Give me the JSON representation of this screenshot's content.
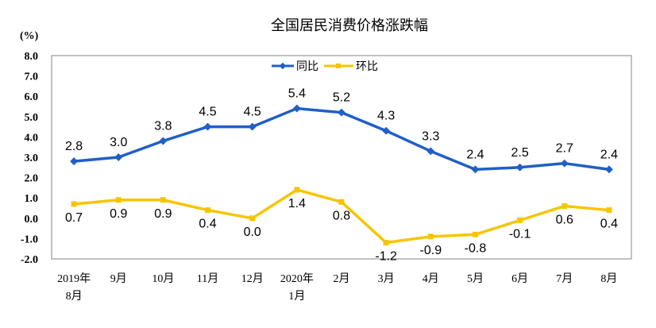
{
  "chart_data": {
    "type": "line",
    "title": "全国居民消费价格涨跌幅",
    "ylabel": "(%)",
    "xlabel": "",
    "ylim": [
      -2.0,
      8.0
    ],
    "yticks": [
      "8.0",
      "7.0",
      "6.0",
      "5.0",
      "4.0",
      "3.0",
      "2.0",
      "1.0",
      "0.0",
      "-1.0",
      "-2.0"
    ],
    "categories": [
      [
        "2019年",
        "8月"
      ],
      [
        "9月"
      ],
      [
        "10月"
      ],
      [
        "11月"
      ],
      [
        "12月"
      ],
      [
        "2020年",
        "1月"
      ],
      [
        "2月"
      ],
      [
        "3月"
      ],
      [
        "4月"
      ],
      [
        "5月"
      ],
      [
        "6月"
      ],
      [
        "7月"
      ],
      [
        "8月"
      ]
    ],
    "grid": false,
    "legend": "top-center",
    "series": [
      {
        "name": "同比",
        "color": "#1f5fc8",
        "marker": "diamond",
        "values": [
          2.8,
          3.0,
          3.8,
          4.5,
          4.5,
          5.4,
          5.2,
          4.3,
          3.3,
          2.4,
          2.5,
          2.7,
          2.4
        ],
        "labels": [
          "2.8",
          "3.0",
          "3.8",
          "4.5",
          "4.5",
          "5.4",
          "5.2",
          "4.3",
          "3.3",
          "2.4",
          "2.5",
          "2.7",
          "2.4"
        ]
      },
      {
        "name": "环比",
        "color": "#f7c500",
        "marker": "square",
        "values": [
          0.7,
          0.9,
          0.9,
          0.4,
          0.0,
          1.4,
          0.8,
          -1.2,
          -0.9,
          -0.8,
          -0.1,
          0.6,
          0.4
        ],
        "labels": [
          "0.7",
          "0.9",
          "0.9",
          "0.4",
          "0.0",
          "1.4",
          "0.8",
          "-1.2",
          "-0.9",
          "-0.8",
          "-0.1",
          "0.6",
          "0.4"
        ]
      }
    ]
  }
}
